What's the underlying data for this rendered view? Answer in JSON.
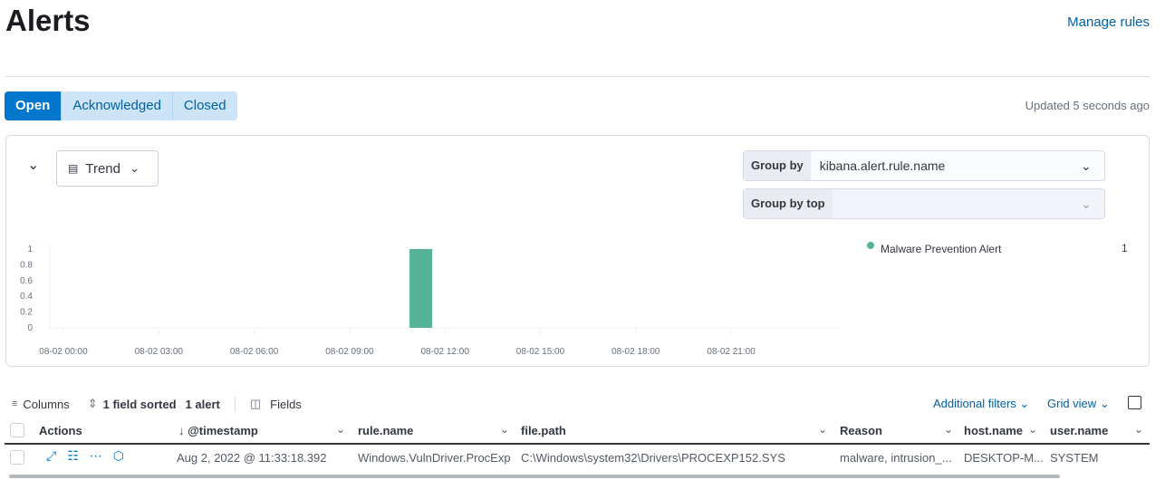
{
  "page": {
    "title": "Alerts",
    "manage_rules": "Manage rules",
    "updated": "Updated 5 seconds ago"
  },
  "tabs": [
    {
      "label": "Open",
      "active": true
    },
    {
      "label": "Acknowledged"
    },
    {
      "label": "Closed"
    }
  ],
  "panel": {
    "view_label": "Trend",
    "group_by_label": "Group by",
    "group_by_value": "kibana.alert.rule.name",
    "group_by_top_label": "Group by top",
    "group_by_top_value": ""
  },
  "legend": [
    {
      "name": "Malware Prevention Alert",
      "count": "1",
      "color": "#54b399"
    }
  ],
  "chart_data": {
    "type": "bar",
    "x": [
      "08-02 11:00"
    ],
    "values": [
      1
    ],
    "series": [
      {
        "name": "Malware Prevention Alert",
        "values": [
          1
        ]
      }
    ],
    "x_ticks": [
      "08-02 00:00",
      "08-02 03:00",
      "08-02 06:00",
      "08-02 09:00",
      "08-02 12:00",
      "08-02 15:00",
      "08-02 18:00",
      "08-02 21:00"
    ],
    "y_ticks": [
      "0",
      "0.2",
      "0.4",
      "0.6",
      "0.8",
      "1"
    ],
    "ylim": [
      0,
      1
    ],
    "color": "#54b399",
    "legend": "right"
  },
  "toolbar": {
    "columns": "Columns",
    "sorted": "1 field sorted",
    "count": "1 alert",
    "fields": "Fields",
    "additional_filters": "Additional filters",
    "grid_view": "Grid view"
  },
  "table": {
    "headers": [
      "Actions",
      "@timestamp",
      "rule.name",
      "file.path",
      "Reason",
      "host.name",
      "user.name"
    ],
    "rows": [
      {
        "timestamp": "Aug 2, 2022 @ 11:33:18.392",
        "rule": "Windows.VulnDriver.ProcExp",
        "path": "C:\\Windows\\system32\\Drivers\\PROCEXP152.SYS",
        "reason": "malware, intrusion_...",
        "host": "DESKTOP-M...",
        "user": "SYSTEM"
      }
    ]
  }
}
